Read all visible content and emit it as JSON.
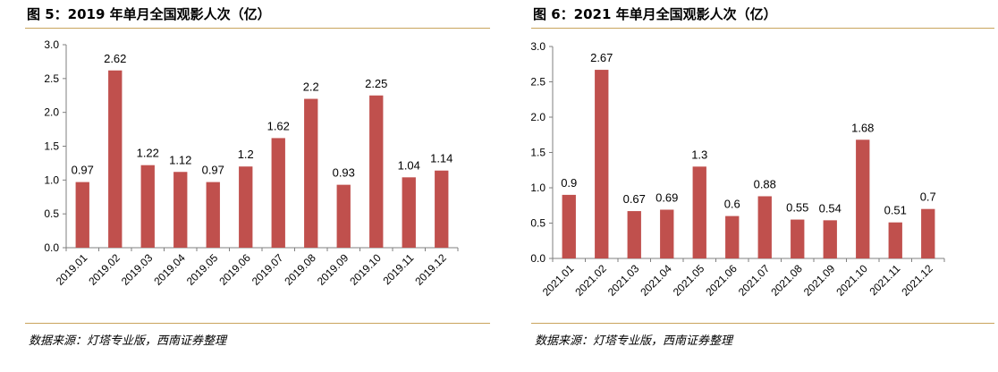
{
  "colors": {
    "bar": "#c0504d",
    "rule": "#c9a45c",
    "axis": "#7f7f7f"
  },
  "chart_data": [
    {
      "type": "bar",
      "title": "图 5：2019 年单月全国观影人次（亿）",
      "source": "数据来源：灯塔专业版，西南证券整理",
      "categories": [
        "2019.01",
        "2019.02",
        "2019.03",
        "2019.04",
        "2019.05",
        "2019.06",
        "2019.07",
        "2019.08",
        "2019.09",
        "2019.10",
        "2019.11",
        "2019.12"
      ],
      "values": [
        0.97,
        2.62,
        1.22,
        1.12,
        0.97,
        1.2,
        1.62,
        2.2,
        0.93,
        2.25,
        1.04,
        1.14
      ],
      "value_labels": [
        "0.97",
        "2.62",
        "1.22",
        "1.12",
        "0.97",
        "1.2",
        "1.62",
        "2.2",
        "0.93",
        "2.25",
        "1.04",
        "1.14"
      ],
      "yticks": [
        "0.0",
        "0.5",
        "1.0",
        "1.5",
        "2.0",
        "2.5",
        "3.0"
      ],
      "ylim": [
        0,
        3
      ],
      "xlabel": "",
      "ylabel": "",
      "grid": false,
      "legend": "none"
    },
    {
      "type": "bar",
      "title": "图 6：2021 年单月全国观影人次（亿）",
      "source": "数据来源：灯塔专业版，西南证券整理",
      "categories": [
        "2021.01",
        "2021.02",
        "2021.03",
        "2021.04",
        "2021.05",
        "2021.06",
        "2021.07",
        "2021.08",
        "2021.09",
        "2021.10",
        "2021.11",
        "2021.12"
      ],
      "values": [
        0.9,
        2.67,
        0.67,
        0.69,
        1.3,
        0.6,
        0.88,
        0.55,
        0.54,
        1.68,
        0.51,
        0.7
      ],
      "value_labels": [
        "0.9",
        "2.67",
        "0.67",
        "0.69",
        "1.3",
        "0.6",
        "0.88",
        "0.55",
        "0.54",
        "1.68",
        "0.51",
        "0.7"
      ],
      "yticks": [
        "0.0",
        "0.5",
        "1.0",
        "1.5",
        "2.0",
        "2.5",
        "3.0"
      ],
      "ylim": [
        0,
        3
      ],
      "xlabel": "",
      "ylabel": "",
      "grid": false,
      "legend": "none"
    }
  ]
}
